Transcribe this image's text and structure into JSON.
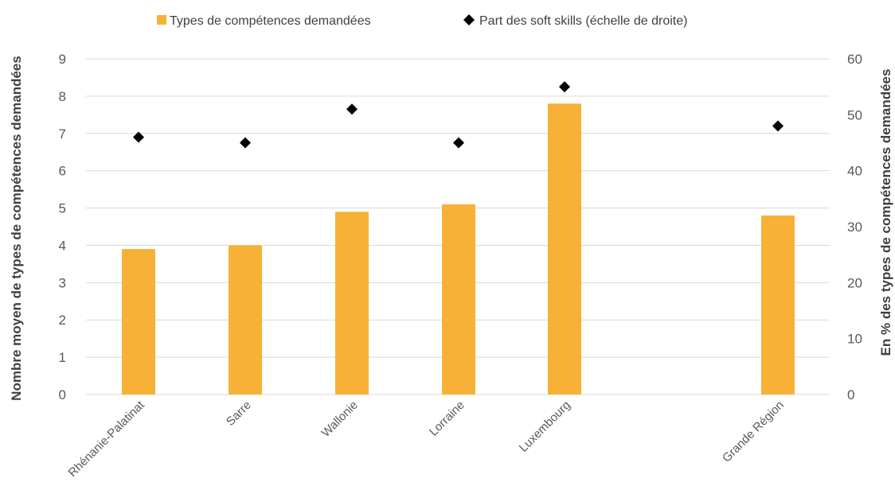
{
  "chart_data": {
    "type": "bar",
    "categories": [
      "Rhénanie-Palatinat",
      "Sarre",
      "Wallonie",
      "Lorraine",
      "Luxembourg",
      "Grande Région"
    ],
    "series": [
      {
        "name": "Types de compétences demandées",
        "chart": "bar",
        "axis": "left",
        "color": "#f7b136",
        "values": [
          3.9,
          4.0,
          4.9,
          5.1,
          7.8,
          4.8
        ]
      },
      {
        "name": "Part des soft skills (échelle de droite)",
        "chart": "scatter",
        "marker": "diamond",
        "axis": "right",
        "color": "#000000",
        "values": [
          46,
          45,
          51,
          45,
          55,
          48
        ]
      }
    ],
    "ylabel": "Nombre moyen de types de compétences demandées",
    "y2label": "En % des types de compétences demandées",
    "ylim": [
      0,
      9
    ],
    "y2lim": [
      0,
      60
    ],
    "yticks": [
      0,
      1,
      2,
      3,
      4,
      5,
      6,
      7,
      8,
      9
    ],
    "y2ticks": [
      0,
      10,
      20,
      30,
      40,
      50,
      60
    ],
    "grid": true,
    "legend_position": "top"
  }
}
